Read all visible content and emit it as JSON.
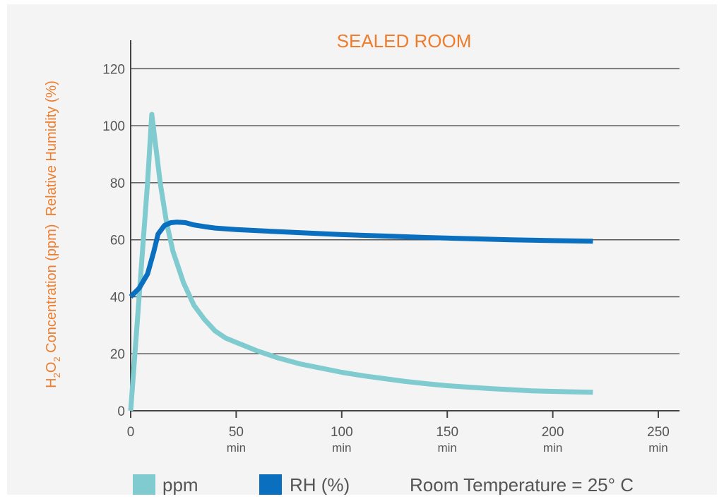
{
  "chart_data": {
    "type": "line",
    "title": "SEALED ROOM",
    "ylabel": {
      "h2o2_prefix": "H",
      "h2o2_sub1": "2",
      "h2o2_mid": "O",
      "h2o2_sub2": "2",
      "rest": " Concentration (ppm)  Relative Humidity (%)"
    },
    "xlabel": "",
    "xlim": [
      0,
      250
    ],
    "ylim": [
      0,
      130
    ],
    "x_ticks": [
      {
        "value": 0,
        "label": "0",
        "unit": ""
      },
      {
        "value": 50,
        "label": "50",
        "unit": "min"
      },
      {
        "value": 100,
        "label": "100",
        "unit": "min"
      },
      {
        "value": 150,
        "label": "150",
        "unit": "min"
      },
      {
        "value": 200,
        "label": "200",
        "unit": "min"
      },
      {
        "value": 250,
        "label": "250",
        "unit": "min"
      }
    ],
    "y_ticks": [
      {
        "value": 0,
        "label": "0"
      },
      {
        "value": 20,
        "label": "20"
      },
      {
        "value": 40,
        "label": "40"
      },
      {
        "value": 60,
        "label": "60"
      },
      {
        "value": 80,
        "label": "80"
      },
      {
        "value": 100,
        "label": "100"
      },
      {
        "value": 120,
        "label": "120"
      }
    ],
    "grid": "horizontal",
    "legend_position": "bottom",
    "series": [
      {
        "name": "ppm",
        "color": "#7fcbcf",
        "points": [
          [
            0,
            0
          ],
          [
            3,
            30
          ],
          [
            6,
            60
          ],
          [
            8,
            80
          ],
          [
            10,
            104
          ],
          [
            12,
            92
          ],
          [
            14,
            80
          ],
          [
            17,
            66
          ],
          [
            20,
            56
          ],
          [
            25,
            45
          ],
          [
            30,
            37
          ],
          [
            35,
            32
          ],
          [
            40,
            28
          ],
          [
            45,
            25.5
          ],
          [
            50,
            24
          ],
          [
            55,
            22.5
          ],
          [
            60,
            21
          ],
          [
            70,
            18.5
          ],
          [
            80,
            16.5
          ],
          [
            90,
            15
          ],
          [
            100,
            13.5
          ],
          [
            110,
            12.3
          ],
          [
            120,
            11.3
          ],
          [
            130,
            10.3
          ],
          [
            140,
            9.5
          ],
          [
            150,
            8.8
          ],
          [
            160,
            8.3
          ],
          [
            170,
            7.8
          ],
          [
            180,
            7.4
          ],
          [
            190,
            7
          ],
          [
            200,
            6.8
          ],
          [
            210,
            6.6
          ],
          [
            219,
            6.5
          ]
        ]
      },
      {
        "name": "RH (%)",
        "color": "#0b6fc0",
        "points": [
          [
            0,
            40
          ],
          [
            4,
            43
          ],
          [
            8,
            48
          ],
          [
            11,
            56
          ],
          [
            13,
            62
          ],
          [
            16,
            65
          ],
          [
            19,
            66
          ],
          [
            22,
            66.2
          ],
          [
            26,
            66
          ],
          [
            30,
            65.2
          ],
          [
            35,
            64.6
          ],
          [
            40,
            64.1
          ],
          [
            50,
            63.6
          ],
          [
            60,
            63.2
          ],
          [
            80,
            62.5
          ],
          [
            100,
            61.8
          ],
          [
            120,
            61.3
          ],
          [
            140,
            60.8
          ],
          [
            160,
            60.4
          ],
          [
            180,
            60
          ],
          [
            200,
            59.7
          ],
          [
            219,
            59.5
          ]
        ]
      }
    ],
    "annotation": "Room Temperature = 25° C"
  }
}
